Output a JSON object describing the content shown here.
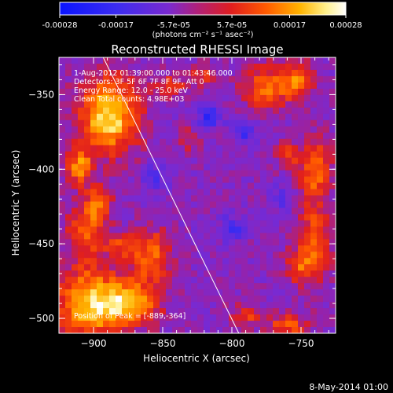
{
  "colorbar": {
    "ticks": [
      -0.00028,
      -0.00017,
      -5.7e-05,
      5.7e-05,
      0.00017,
      0.00028
    ],
    "tick_labels": [
      "-0.00028",
      "-0.00017",
      "-5.7e-05",
      "5.7e-05",
      "0.00017",
      "0.00028"
    ],
    "unit_label": "(photons cm⁻² s⁻¹ asec⁻²)"
  },
  "chart_data": {
    "type": "heatmap",
    "title": "Reconstructed RHESSI Image",
    "xlabel": "Heliocentric X (arcsec)",
    "ylabel": "Heliocentric Y (arcsec)",
    "xlim": [
      -925,
      -725
    ],
    "ylim": [
      -510,
      -325
    ],
    "x_ticks": [
      -900,
      -850,
      -800,
      -750
    ],
    "y_ticks": [
      -350,
      -400,
      -450,
      -500
    ],
    "x_tick_labels": [
      "−900",
      "−850",
      "−800",
      "−750"
    ],
    "y_tick_labels": [
      "−350",
      "−400",
      "−450",
      "−500"
    ],
    "value_range": [
      -0.00028,
      0.00028
    ],
    "colormap": "rhessi (blue-violet-red-yellow-white)",
    "annotations": [
      "1-Aug-2012 01:39:00.000 to 01:43:46.000",
      "Detectors: 3F 5F 6F 7F 8F 9F, Att 0",
      "Energy Range: 12.0 - 25.0 keV",
      "Clean      Total counts: 4.98E+03",
      "Position of Peak = [-889,-364]"
    ],
    "peak_position": [
      -889,
      -364
    ],
    "limb_line": [
      [
        -893,
        -325
      ],
      [
        -795,
        -510
      ]
    ],
    "hotspots": [
      {
        "x": -889,
        "y": -364,
        "v": 0.00028,
        "sx": 15,
        "sy": 18
      },
      {
        "x": -902,
        "y": -490,
        "v": 0.00026,
        "sx": 18,
        "sy": 16
      },
      {
        "x": -872,
        "y": -490,
        "v": 0.0002,
        "sx": 14,
        "sy": 10
      },
      {
        "x": -905,
        "y": -440,
        "v": 0.00016,
        "sx": 10,
        "sy": 14
      },
      {
        "x": -896,
        "y": -422,
        "v": 0.00015,
        "sx": 6,
        "sy": 8
      },
      {
        "x": -910,
        "y": -398,
        "v": 0.0002,
        "sx": 6,
        "sy": 8
      },
      {
        "x": -858,
        "y": -458,
        "v": 0.00018,
        "sx": 10,
        "sy": 12
      },
      {
        "x": -880,
        "y": -452,
        "v": 0.00012,
        "sx": 7,
        "sy": 6
      },
      {
        "x": -845,
        "y": -345,
        "v": 0.00013,
        "sx": 8,
        "sy": 6
      },
      {
        "x": -820,
        "y": -338,
        "v": 0.00012,
        "sx": 8,
        "sy": 5
      },
      {
        "x": -775,
        "y": -345,
        "v": 0.00017,
        "sx": 12,
        "sy": 10
      },
      {
        "x": -752,
        "y": -340,
        "v": 0.00016,
        "sx": 8,
        "sy": 10
      },
      {
        "x": -740,
        "y": -400,
        "v": 0.00018,
        "sx": 8,
        "sy": 14
      },
      {
        "x": -760,
        "y": -390,
        "v": 0.00012,
        "sx": 6,
        "sy": 6
      },
      {
        "x": -740,
        "y": -450,
        "v": 0.00017,
        "sx": 8,
        "sy": 18
      },
      {
        "x": -752,
        "y": -465,
        "v": 0.00013,
        "sx": 7,
        "sy": 8
      },
      {
        "x": -760,
        "y": -505,
        "v": 0.00015,
        "sx": 10,
        "sy": 6
      },
      {
        "x": -790,
        "y": -498,
        "v": 0.00012,
        "sx": 8,
        "sy": 5
      },
      {
        "x": -830,
        "y": -380,
        "v": 8e-05,
        "sx": 6,
        "sy": 6
      }
    ],
    "cold_spots": [
      {
        "x": -815,
        "y": -365,
        "v": -0.00016,
        "sx": 6,
        "sy": 5
      },
      {
        "x": -790,
        "y": -375,
        "v": -0.00013,
        "sx": 5,
        "sy": 5
      },
      {
        "x": -800,
        "y": -440,
        "v": -0.00012,
        "sx": 6,
        "sy": 6
      },
      {
        "x": -855,
        "y": -405,
        "v": -0.0001,
        "sx": 6,
        "sy": 6
      },
      {
        "x": -765,
        "y": -420,
        "v": -0.0001,
        "sx": 5,
        "sy": 5
      }
    ]
  },
  "footer": {
    "date": "8-May-2014 01:00"
  }
}
